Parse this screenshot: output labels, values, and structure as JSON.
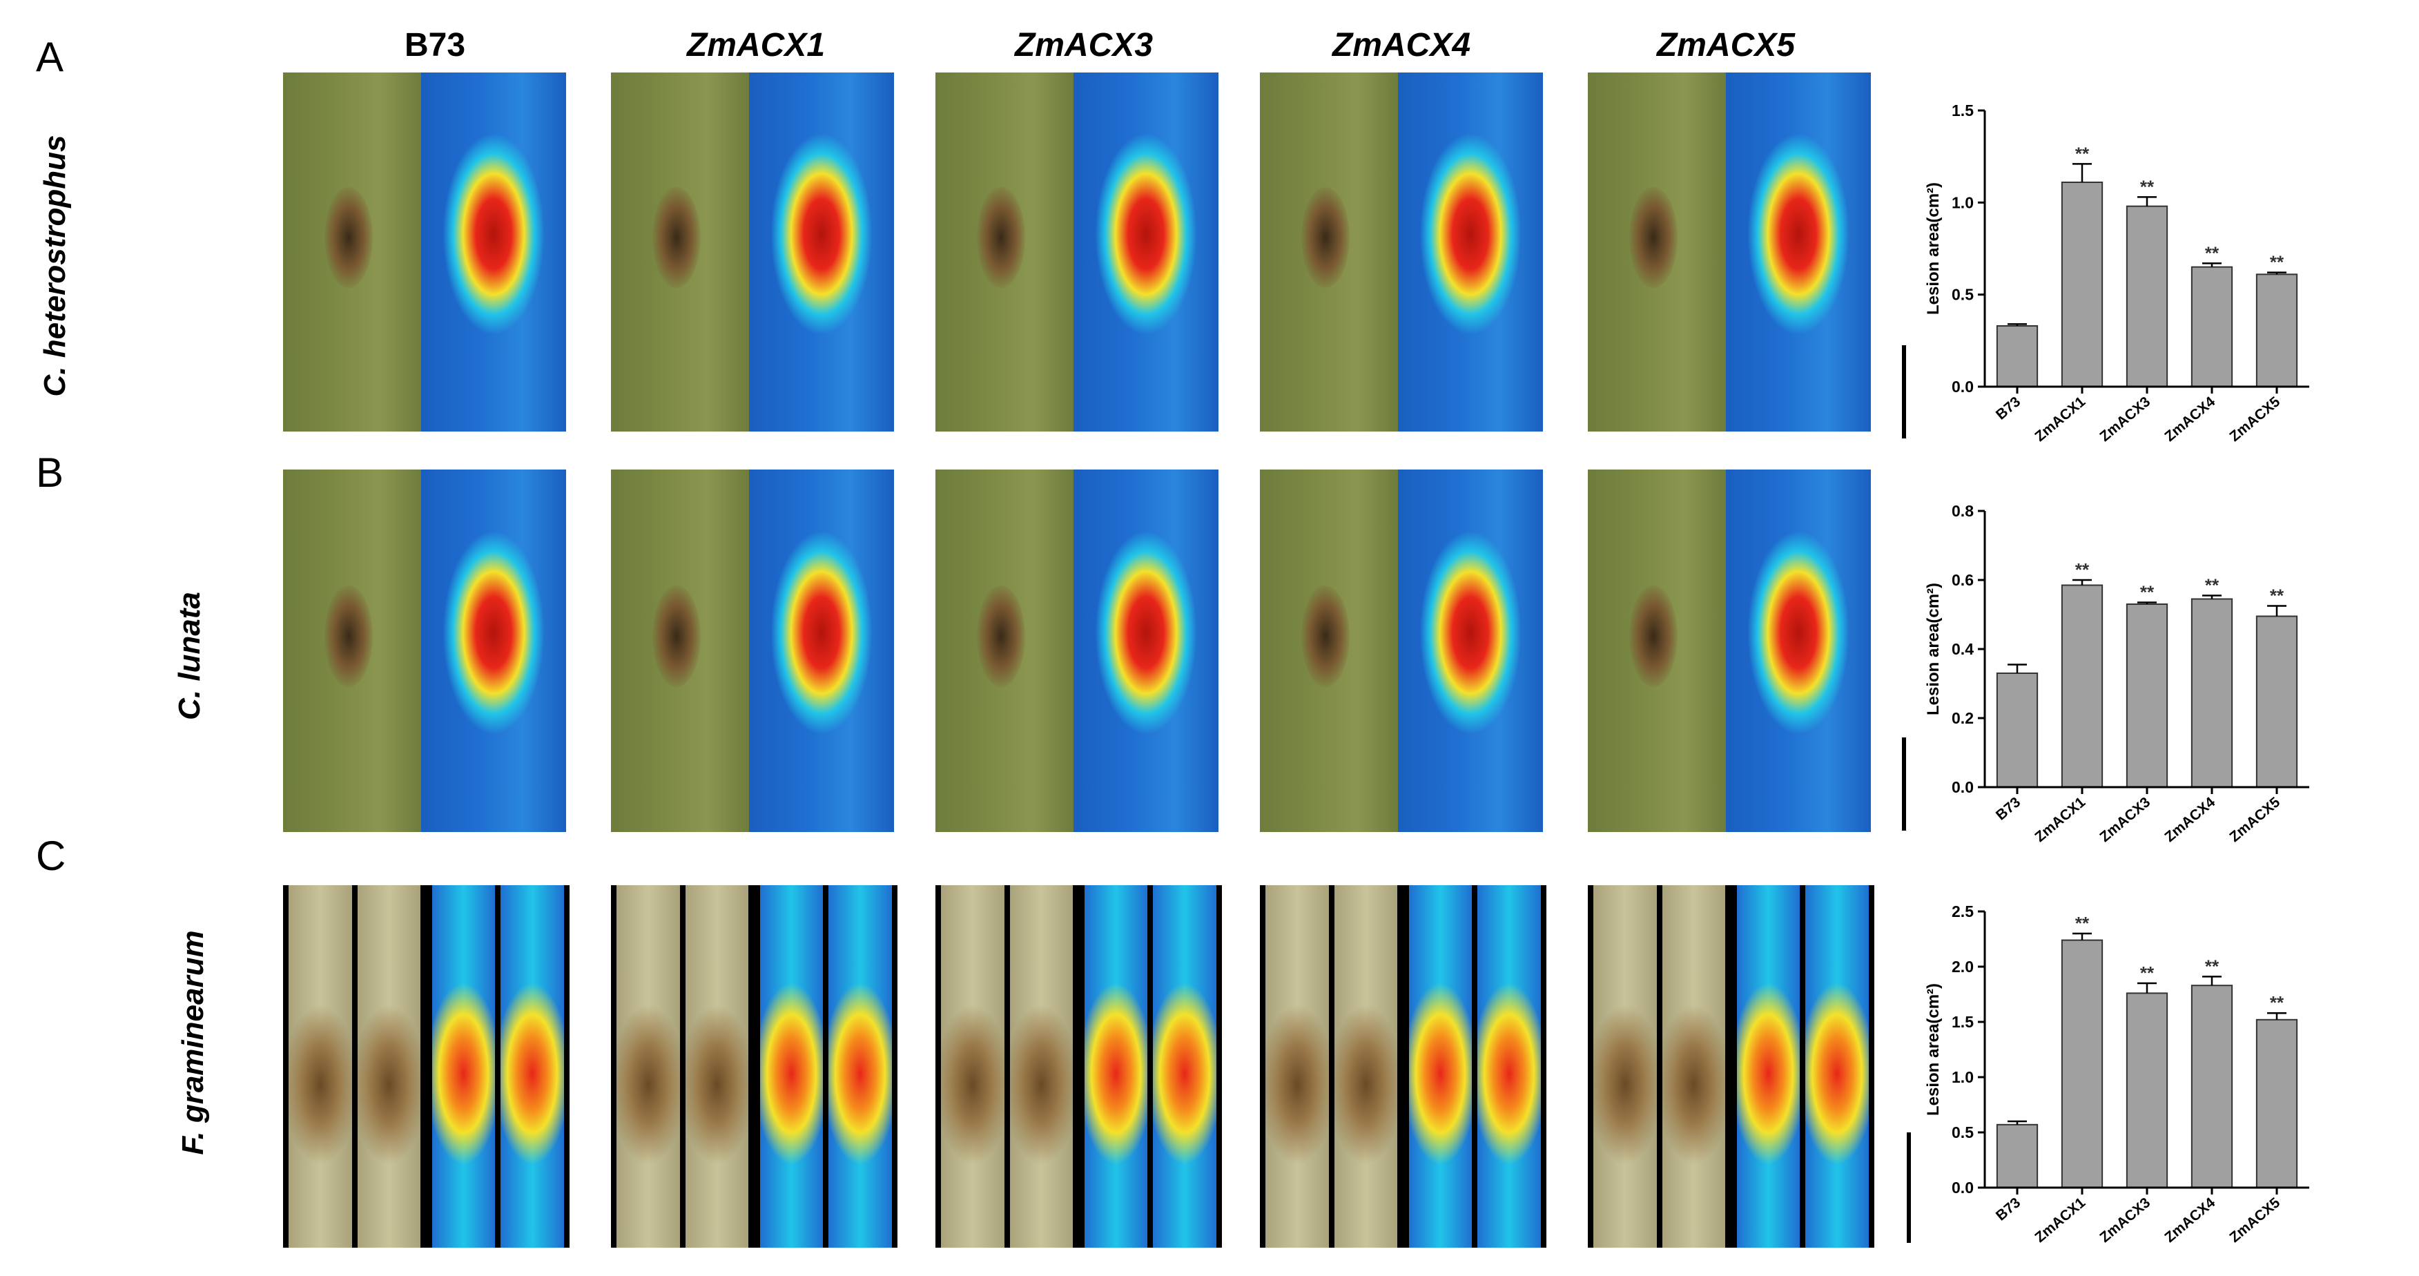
{
  "panel_letters": [
    "A",
    "B",
    "C"
  ],
  "column_labels": [
    {
      "text": "B73",
      "italic": false
    },
    {
      "text": "ZmACX1",
      "italic": true
    },
    {
      "text": "ZmACX3",
      "italic": true
    },
    {
      "text": "ZmACX4",
      "italic": true
    },
    {
      "text": "ZmACX5",
      "italic": true
    }
  ],
  "row_labels": [
    "C. heterostrophus",
    "C. lunata",
    "F. graminearum"
  ],
  "colors": {
    "leaf_green": "#7d8a45",
    "stalk_tan": "#c9c39a",
    "heat_blue": "#1f6fd1",
    "heat_cyan": "#21c4e8",
    "heat_yellow": "#f4e12b",
    "heat_red": "#e8261a",
    "lesion_brown": "#7a5a32",
    "bar_gray": "#a0a0a0"
  },
  "chart_data": [
    {
      "type": "bar",
      "categories": [
        "B73",
        "ZmACX1",
        "ZmACX3",
        "ZmACX4",
        "ZmACX5"
      ],
      "values": [
        0.33,
        1.11,
        0.98,
        0.65,
        0.61
      ],
      "errors": [
        0.01,
        0.1,
        0.05,
        0.02,
        0.01
      ],
      "significance": [
        "",
        "**",
        "**",
        "**",
        "**"
      ],
      "ylabel": "Lesion area(cm²)",
      "ylim": [
        0,
        1.5
      ],
      "yticks": [
        "0.0",
        "0.5",
        "1.0",
        "1.5"
      ],
      "tick_values": [
        0,
        0.5,
        1.0,
        1.5
      ]
    },
    {
      "type": "bar",
      "categories": [
        "B73",
        "ZmACX1",
        "ZmACX3",
        "ZmACX4",
        "ZmACX5"
      ],
      "values": [
        0.33,
        0.585,
        0.53,
        0.545,
        0.495
      ],
      "errors": [
        0.025,
        0.015,
        0.005,
        0.01,
        0.03
      ],
      "significance": [
        "",
        "**",
        "**",
        "**",
        "**"
      ],
      "ylabel": "Lesion area(cm²)",
      "ylim": [
        0,
        0.8
      ],
      "yticks": [
        "0.0",
        "0.2",
        "0.4",
        "0.6",
        "0.8"
      ],
      "tick_values": [
        0,
        0.2,
        0.4,
        0.6,
        0.8
      ]
    },
    {
      "type": "bar",
      "categories": [
        "B73",
        "ZmACX1",
        "ZmACX3",
        "ZmACX4",
        "ZmACX5"
      ],
      "values": [
        0.57,
        2.24,
        1.76,
        1.83,
        1.52
      ],
      "errors": [
        0.03,
        0.06,
        0.09,
        0.08,
        0.06
      ],
      "significance": [
        "",
        "**",
        "**",
        "**",
        "**"
      ],
      "ylabel": "Lesion area(cm²)",
      "ylim": [
        0,
        2.5
      ],
      "yticks": [
        "0.0",
        "0.5",
        "1.0",
        "1.5",
        "2.0",
        "2.5"
      ],
      "tick_values": [
        0,
        0.5,
        1.0,
        1.5,
        2.0,
        2.5
      ]
    }
  ]
}
